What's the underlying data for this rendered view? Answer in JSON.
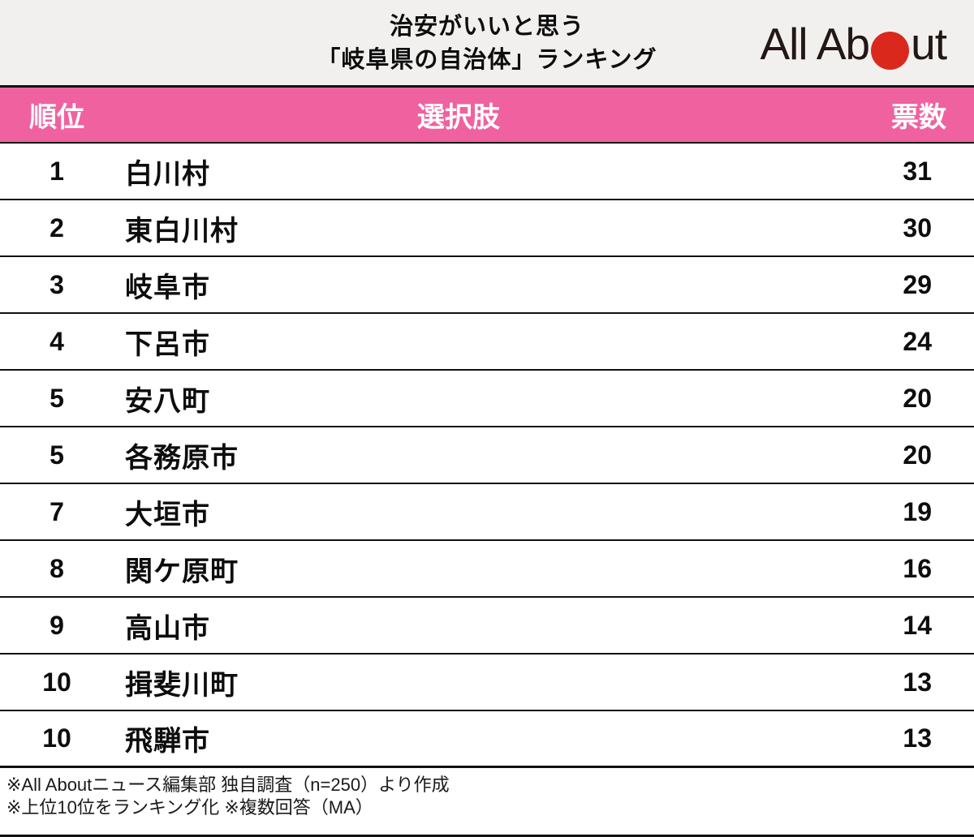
{
  "colors": {
    "accent_pink": "#f0619f",
    "title_bg": "#f1f0ef",
    "line": "#111111",
    "logo_red": "#da291c",
    "logo_text": "#221714"
  },
  "header": {
    "title_line1": "治安がいいと思う",
    "title_line2": "「岐阜県の自治体」ランキング",
    "logo": {
      "text_before": "All Ab",
      "text_after": "ut",
      "dot_icon": "red-circle-o"
    }
  },
  "chart_data": {
    "type": "table",
    "title": "治安がいいと思う「岐阜県の自治体」ランキング",
    "columns": [
      "順位",
      "選択肢",
      "票数"
    ],
    "rows": [
      [
        "1",
        "白川村",
        "31"
      ],
      [
        "2",
        "東白川村",
        "30"
      ],
      [
        "3",
        "岐阜市",
        "29"
      ],
      [
        "4",
        "下呂市",
        "24"
      ],
      [
        "5",
        "安八町",
        "20"
      ],
      [
        "5",
        "各務原市",
        "20"
      ],
      [
        "7",
        "大垣市",
        "19"
      ],
      [
        "8",
        "関ケ原町",
        "16"
      ],
      [
        "9",
        "高山市",
        "14"
      ],
      [
        "10",
        "揖斐川町",
        "13"
      ],
      [
        "10",
        "飛騨市",
        "13"
      ]
    ]
  },
  "footnotes": [
    "※All Aboutニュース編集部 独自調査（n=250）より作成",
    "※上位10位をランキング化 ※複数回答（MA）"
  ]
}
